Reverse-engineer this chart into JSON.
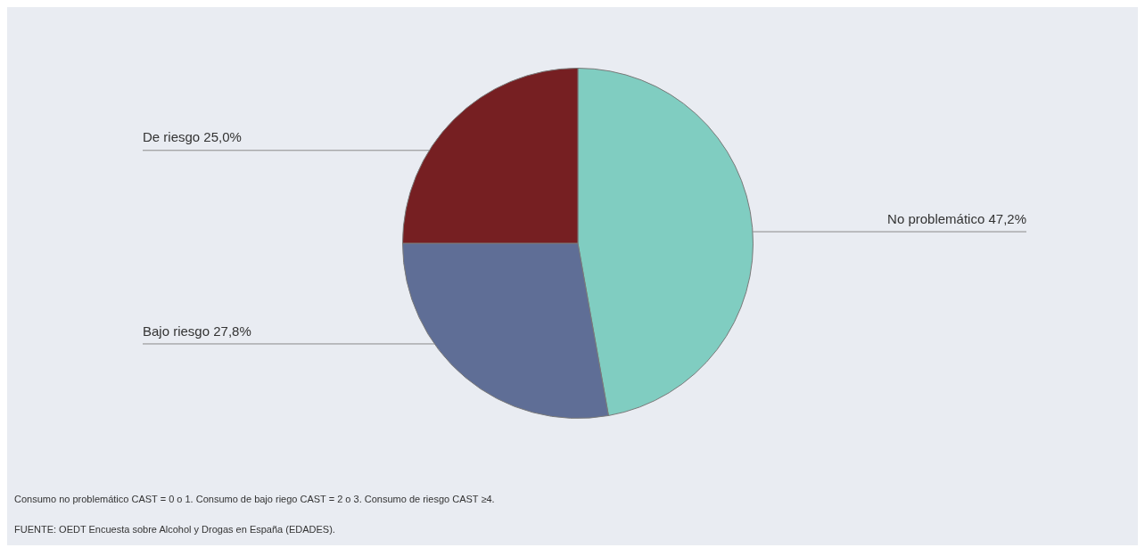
{
  "chart_data": {
    "type": "pie",
    "categories": [
      "No problemático",
      "Bajo riesgo",
      "De riesgo"
    ],
    "values": [
      47.2,
      27.8,
      25.0
    ],
    "value_labels": [
      "47,2%",
      "27,8%",
      "25,0%"
    ],
    "colors": [
      "#80cdc1",
      "#5f6e96",
      "#761f22"
    ],
    "legend": false,
    "annotations": [
      "Consumo no problemático CAST = 0 o 1. Consumo de bajo riego CAST = 2 o 3. Consumo de riesgo CAST ≥4.",
      "FUENTE: OEDT Encuesta sobre Alcohol y Drogas en España (EDADES)."
    ]
  }
}
